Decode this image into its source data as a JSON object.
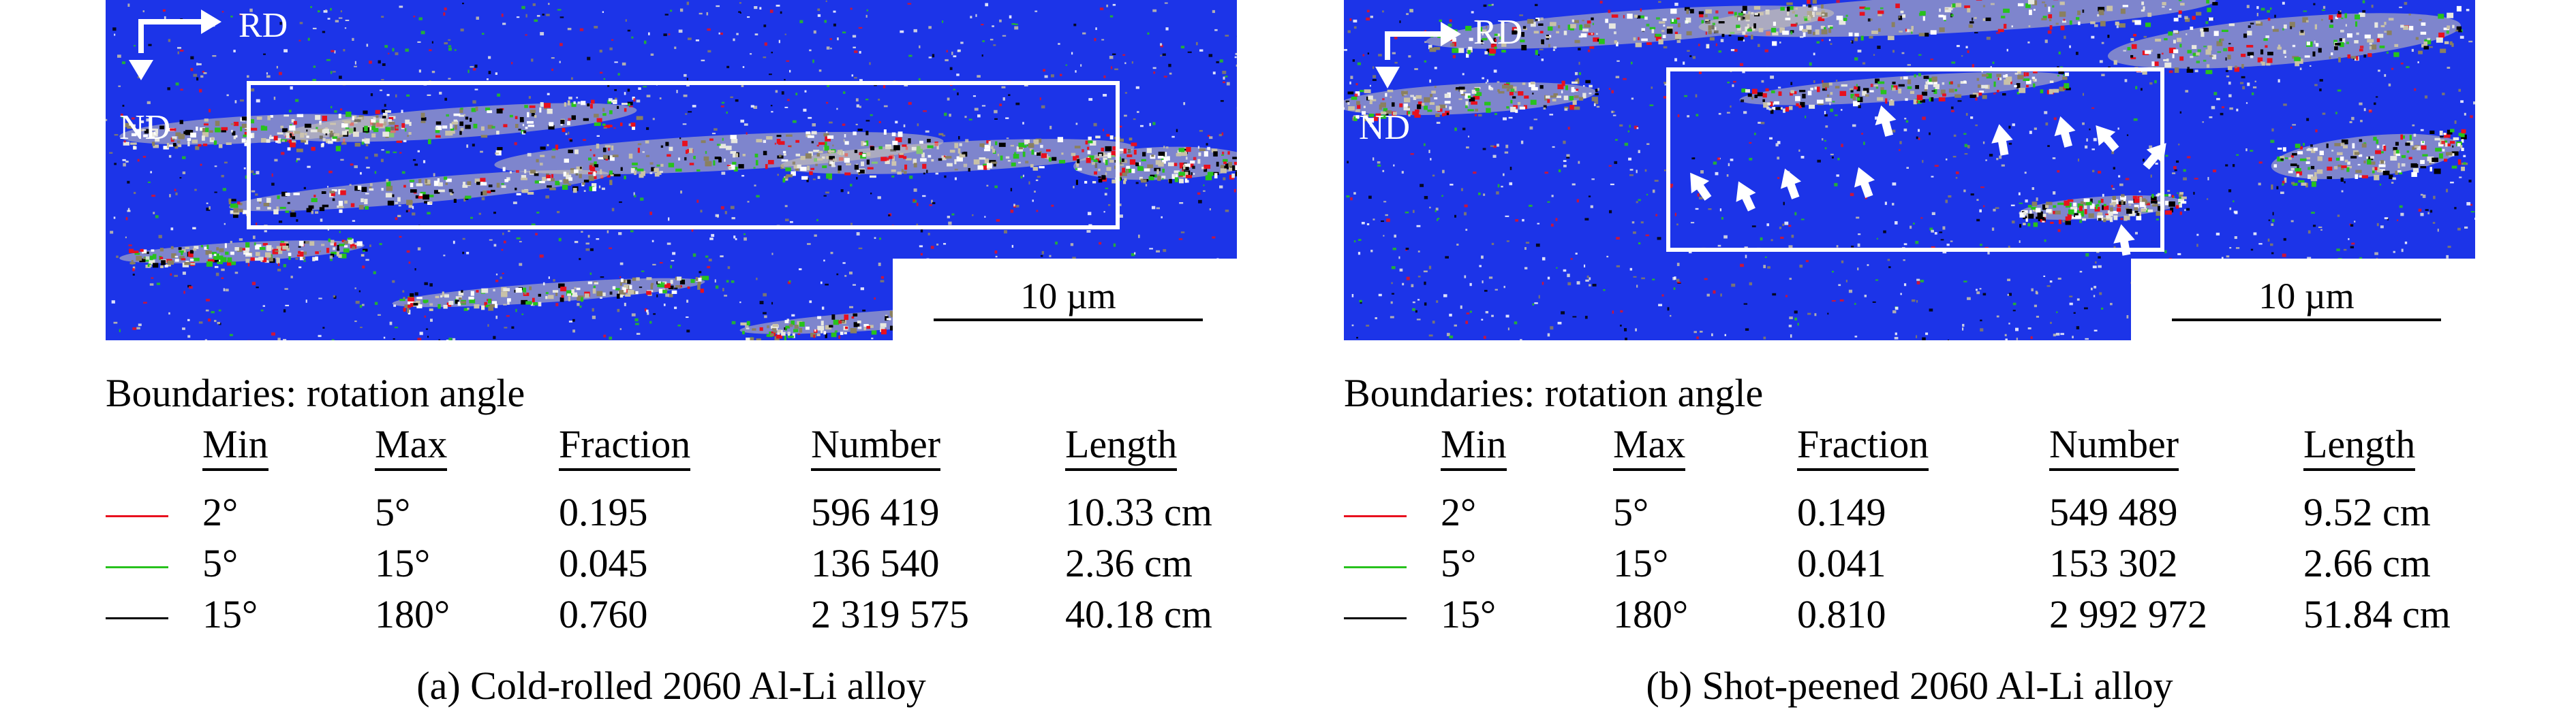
{
  "panels": [
    {
      "id": "a",
      "axes": {
        "horizontal": "RD",
        "vertical": "ND"
      },
      "scale_bar": "10 µm",
      "boundaries_title": "Boundaries: rotation angle",
      "headers": [
        "Min",
        "Max",
        "Fraction",
        "Number",
        "Length"
      ],
      "rows": [
        {
          "color": "#e8101e",
          "min": "2°",
          "max": "5°",
          "fraction": "0.195",
          "number": "596 419",
          "length": "10.33 cm"
        },
        {
          "color": "#27c21d",
          "min": "5°",
          "max": "15°",
          "fraction": "0.045",
          "number": "136 540",
          "length": "2.36 cm"
        },
        {
          "color": "#000000",
          "min": "15°",
          "max": "180°",
          "fraction": "0.760",
          "number": "2 319 575",
          "length": "40.18 cm"
        }
      ],
      "caption": "(a) Cold-rolled 2060 Al-Li alloy",
      "arrow_count": 0
    },
    {
      "id": "b",
      "axes": {
        "horizontal": "RD",
        "vertical": "ND"
      },
      "scale_bar": "10 µm",
      "boundaries_title": "Boundaries: rotation angle",
      "headers": [
        "Min",
        "Max",
        "Fraction",
        "Number",
        "Length"
      ],
      "rows": [
        {
          "color": "#e8101e",
          "min": "2°",
          "max": "5°",
          "fraction": "0.149",
          "number": "549 489",
          "length": "9.52 cm"
        },
        {
          "color": "#27c21d",
          "min": "5°",
          "max": "15°",
          "fraction": "0.041",
          "number": "153 302",
          "length": "2.66 cm"
        },
        {
          "color": "#000000",
          "min": "15°",
          "max": "180°",
          "fraction": "0.810",
          "number": "2 992 972",
          "length": "51.84 cm"
        }
      ],
      "caption": "(b) Shot-peened 2060 Al-Li alloy",
      "arrow_count": 10
    }
  ],
  "colors": {
    "map_background": "#1c34e8",
    "low_angle_boundary": "#e8101e",
    "medium_angle_boundary": "#27c21d",
    "high_angle_boundary": "#000000",
    "annotation": "#ffffff"
  }
}
